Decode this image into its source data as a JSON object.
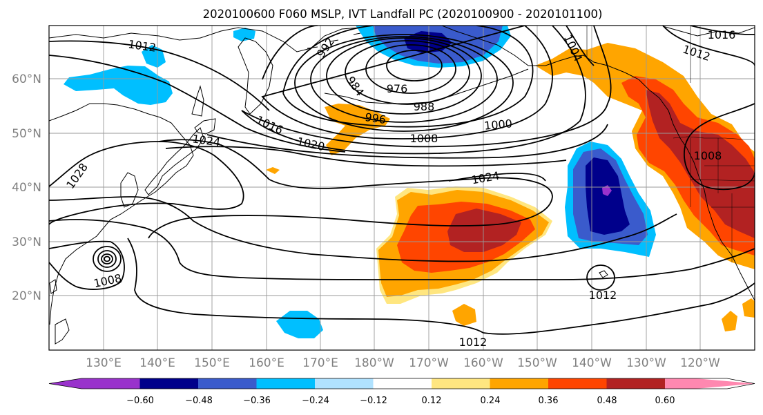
{
  "title": "2020100600 F060 MSLP, IVT Landfall PC (2020100900 - 2020101100)",
  "axes": {
    "lat_labels": [
      "60°N",
      "50°N",
      "40°N",
      "30°N",
      "20°N"
    ],
    "lon_labels": [
      "130°E",
      "140°E",
      "150°E",
      "160°E",
      "170°E",
      "180°W",
      "170°W",
      "160°W",
      "150°W",
      "140°W",
      "130°W",
      "120°W"
    ]
  },
  "contour_labels": [
    "1012",
    "1016",
    "1012",
    "1004",
    "992",
    "984",
    "976",
    "988",
    "996",
    "1000",
    "1008",
    "1016",
    "1020",
    "1024",
    "1024",
    "1028",
    "1008",
    "1008",
    "1012",
    "1012"
  ],
  "colorbar": {
    "ticks": [
      "−0.60",
      "−0.48",
      "−0.36",
      "−0.24",
      "−0.12",
      "0.12",
      "0.24",
      "0.36",
      "0.48",
      "0.60"
    ],
    "colors": [
      "#9932cc",
      "#00008b",
      "#3a5bcc",
      "#00bfff",
      "#b0e2ff",
      "#ffffff",
      "#ffe680",
      "#ffa500",
      "#ff4500",
      "#b22222",
      "#ff88b0"
    ]
  },
  "colors": {
    "coast": "#000000",
    "grid": "#999999",
    "axis_label": "#808080"
  }
}
